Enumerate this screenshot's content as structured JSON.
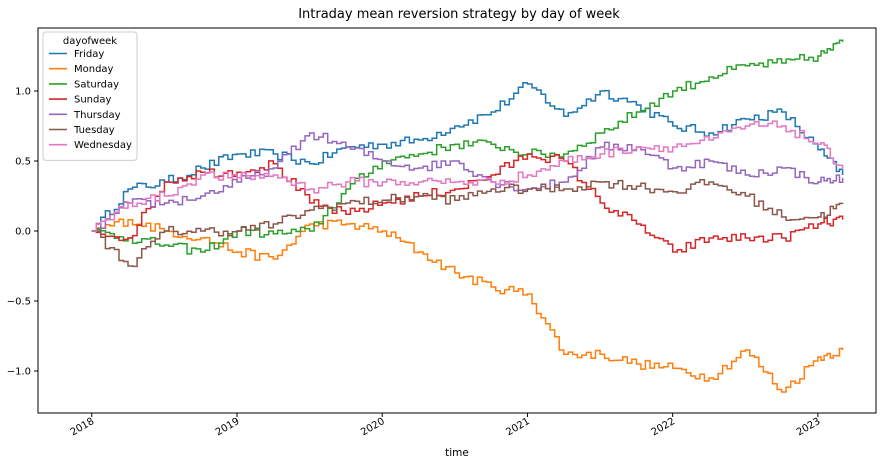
{
  "chart_data": {
    "type": "line",
    "title": "Intraday mean reversion strategy by day of week",
    "xlabel": "time",
    "ylabel": "",
    "x_ticks": [
      "2018",
      "2019",
      "2020",
      "2021",
      "2022",
      "2023"
    ],
    "x_tick_values": [
      2018.0,
      2019.0,
      2020.0,
      2021.0,
      2022.0,
      2023.0
    ],
    "xlim": [
      2017.63,
      2023.4
    ],
    "y_ticks": [
      "1.0",
      "0.5",
      "0.0",
      "−0.5",
      "−1.0"
    ],
    "y_tick_values": [
      1.0,
      0.5,
      0.0,
      -0.5,
      -1.0
    ],
    "ylim": [
      -1.3,
      1.45
    ],
    "grid": false,
    "legend": {
      "title": "dayofweek",
      "placement": "top-left"
    },
    "x": [
      2018.0,
      2018.25,
      2018.5,
      2018.75,
      2019.0,
      2019.25,
      2019.5,
      2019.75,
      2020.0,
      2020.25,
      2020.5,
      2020.75,
      2021.0,
      2021.25,
      2021.5,
      2021.75,
      2022.0,
      2022.25,
      2022.5,
      2022.75,
      2023.0,
      2023.17
    ],
    "series": [
      {
        "name": "Friday",
        "color": "#1f77b4",
        "values": [
          0.0,
          0.3,
          0.35,
          0.45,
          0.55,
          0.55,
          0.48,
          0.6,
          0.62,
          0.65,
          0.75,
          0.85,
          1.05,
          0.82,
          1.0,
          0.9,
          0.75,
          0.7,
          0.8,
          0.85,
          0.58,
          0.4
        ]
      },
      {
        "name": "Monday",
        "color": "#ff7f0e",
        "values": [
          0.0,
          0.08,
          0.0,
          -0.05,
          -0.15,
          -0.2,
          0.05,
          0.05,
          0.0,
          -0.15,
          -0.3,
          -0.4,
          -0.45,
          -0.88,
          -0.88,
          -0.95,
          -0.98,
          -1.05,
          -0.85,
          -1.15,
          -0.9,
          -0.85
        ]
      },
      {
        "name": "Saturday",
        "color": "#2ca02c",
        "values": [
          0.0,
          -0.05,
          -0.1,
          -0.15,
          0.0,
          -0.02,
          0.0,
          0.3,
          0.5,
          0.55,
          0.62,
          0.62,
          0.55,
          0.55,
          0.7,
          0.85,
          1.0,
          1.1,
          1.18,
          1.2,
          1.25,
          1.35
        ]
      },
      {
        "name": "Sunday",
        "color": "#d62728",
        "values": [
          0.0,
          -0.05,
          0.35,
          0.42,
          0.42,
          0.48,
          0.2,
          0.12,
          0.2,
          0.25,
          0.3,
          0.4,
          0.55,
          0.5,
          0.2,
          0.05,
          -0.15,
          -0.05,
          -0.05,
          -0.05,
          0.05,
          0.08
        ]
      },
      {
        "name": "Thursday",
        "color": "#9467bd",
        "values": [
          0.0,
          0.2,
          0.2,
          0.25,
          0.35,
          0.45,
          0.7,
          0.6,
          0.5,
          0.45,
          0.5,
          0.35,
          0.3,
          0.35,
          0.6,
          0.6,
          0.45,
          0.5,
          0.4,
          0.45,
          0.35,
          0.38
        ]
      },
      {
        "name": "Tuesday",
        "color": "#8c564b",
        "values": [
          0.0,
          -0.25,
          0.0,
          0.0,
          0.0,
          0.05,
          0.15,
          0.2,
          0.22,
          0.25,
          0.22,
          0.3,
          0.3,
          0.3,
          0.35,
          0.32,
          0.28,
          0.35,
          0.25,
          0.1,
          0.1,
          0.2
        ]
      },
      {
        "name": "Wednesday",
        "color": "#e377c2",
        "values": [
          0.0,
          0.2,
          0.25,
          0.4,
          0.38,
          0.4,
          0.3,
          0.35,
          0.35,
          0.35,
          0.35,
          0.35,
          0.4,
          0.5,
          0.55,
          0.6,
          0.6,
          0.65,
          0.75,
          0.75,
          0.62,
          0.45
        ]
      }
    ]
  }
}
